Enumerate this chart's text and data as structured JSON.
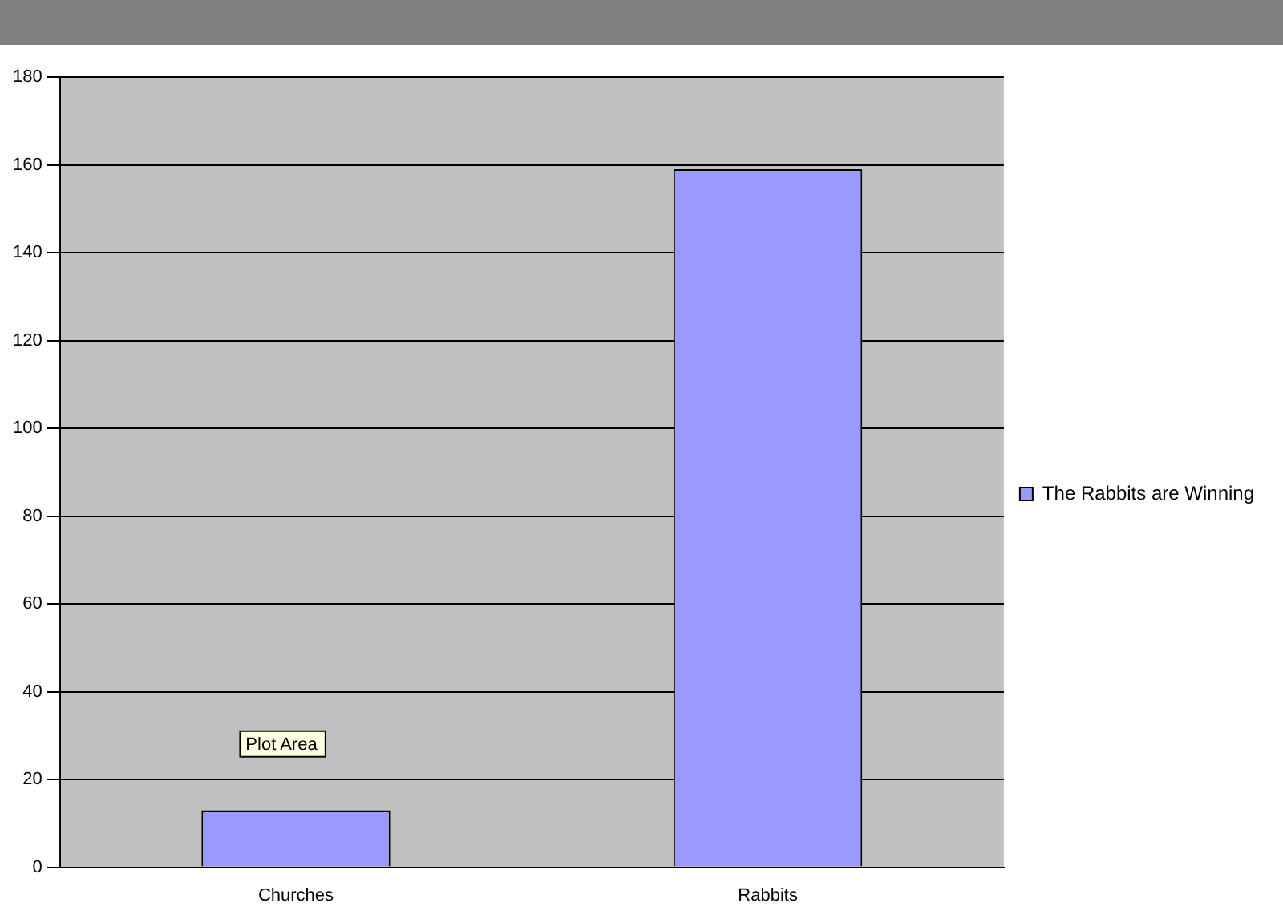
{
  "chart_data": {
    "type": "bar",
    "categories": [
      "Churches",
      "Rabbits"
    ],
    "series": [
      {
        "name": "The Rabbits are Winning",
        "color": "#9999ff",
        "values": [
          13,
          159
        ]
      }
    ],
    "ylim": [
      0,
      180
    ],
    "yticks": [
      0,
      20,
      40,
      60,
      80,
      100,
      120,
      140,
      160,
      180
    ],
    "grid": "y",
    "legend": "right",
    "annotations": [
      "Plot Area"
    ]
  }
}
